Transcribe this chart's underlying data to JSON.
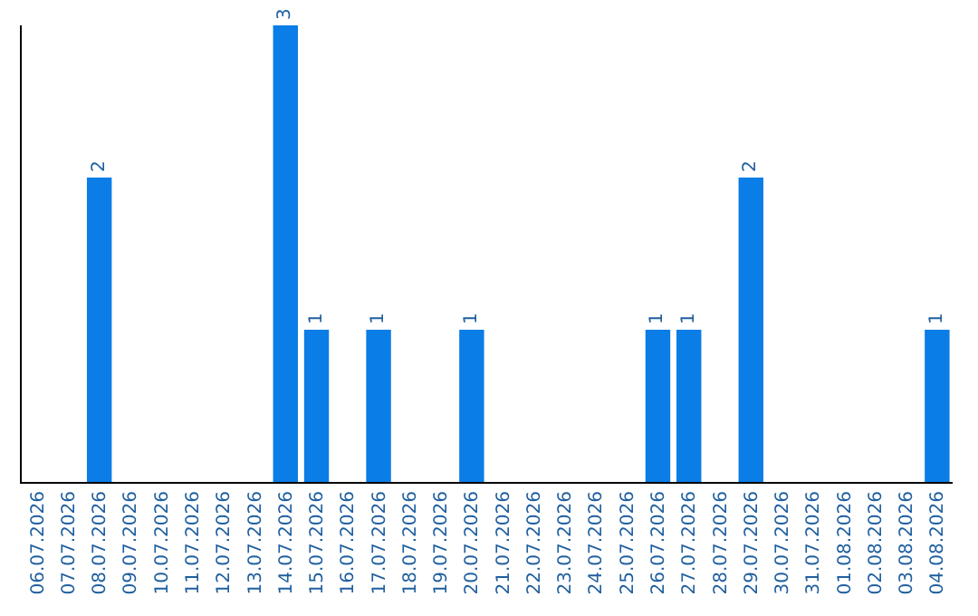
{
  "chart_data": {
    "type": "bar",
    "categories": [
      "06.07.2026",
      "07.07.2026",
      "08.07.2026",
      "09.07.2026",
      "10.07.2026",
      "11.07.2026",
      "12.07.2026",
      "13.07.2026",
      "14.07.2026",
      "15.07.2026",
      "16.07.2026",
      "17.07.2026",
      "18.07.2026",
      "19.07.2026",
      "20.07.2026",
      "21.07.2026",
      "22.07.2026",
      "23.07.2026",
      "24.07.2026",
      "25.07.2026",
      "26.07.2026",
      "27.07.2026",
      "28.07.2026",
      "29.07.2026",
      "30.07.2026",
      "31.07.2026",
      "01.08.2026",
      "02.08.2026",
      "03.08.2026",
      "04.08.2026"
    ],
    "values": [
      0,
      0,
      2,
      0,
      0,
      0,
      0,
      0,
      3,
      1,
      0,
      1,
      0,
      0,
      1,
      0,
      0,
      0,
      0,
      0,
      1,
      1,
      0,
      2,
      0,
      0,
      0,
      0,
      0,
      1
    ],
    "value_labels": [
      null,
      null,
      "2",
      null,
      null,
      null,
      null,
      null,
      "3",
      "1",
      null,
      "1",
      null,
      null,
      "1",
      null,
      null,
      null,
      null,
      null,
      "1",
      "1",
      null,
      "2",
      null,
      null,
      null,
      null,
      null,
      "1"
    ],
    "color": "#0a7de6",
    "ylim": [
      0,
      3
    ],
    "tick_labels": "x",
    "legend": false
  }
}
